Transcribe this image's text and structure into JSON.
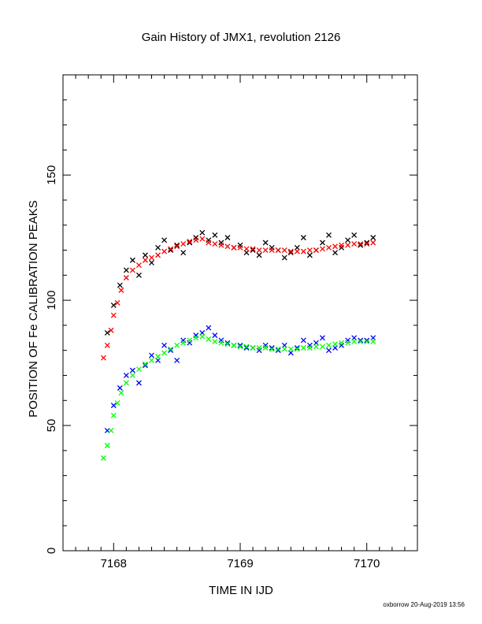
{
  "chart_data": {
    "type": "scatter",
    "title": "Gain History of JMX1, revolution 2126",
    "xlabel": "TIME IN IJD",
    "ylabel": "POSITION OF Fe CALIBRATION PEAKS",
    "xlim": [
      7167.6,
      7170.4
    ],
    "ylim": [
      0,
      190
    ],
    "xticks": [
      7168,
      7169,
      7170
    ],
    "xtick_labels": [
      "7168",
      "7169",
      "7170"
    ],
    "yticks": [
      0,
      50,
      100,
      150
    ],
    "ytick_labels": [
      "0",
      "50",
      "100",
      "150"
    ],
    "grid": false,
    "legend": "none",
    "series": [
      {
        "marker": "cross",
        "color": "#000000",
        "x": [
          7167.95,
          7168.0,
          7168.05,
          7168.1,
          7168.15,
          7168.2,
          7168.25,
          7168.3,
          7168.35,
          7168.4,
          7168.45,
          7168.5,
          7168.55,
          7168.6,
          7168.65,
          7168.7,
          7168.75,
          7168.8,
          7168.85,
          7168.9,
          7168.95,
          7169.0,
          7169.05,
          7169.1,
          7169.15,
          7169.2,
          7169.25,
          7169.3,
          7169.35,
          7169.4,
          7169.45,
          7169.5,
          7169.55,
          7169.6,
          7169.65,
          7169.7,
          7169.75,
          7169.8,
          7169.85,
          7169.9,
          7169.95,
          7170.0,
          7170.05
        ],
        "y": [
          87,
          98,
          106,
          112,
          116,
          110,
          118,
          115,
          121,
          124,
          120,
          122,
          119,
          123,
          125,
          127,
          124,
          126,
          123,
          125,
          121,
          122,
          119,
          120,
          118,
          123,
          121,
          120,
          117,
          119,
          121,
          125,
          118,
          120,
          123,
          126,
          119,
          121,
          124,
          126,
          122,
          123,
          125
        ]
      },
      {
        "marker": "cross",
        "color": "#ff0000",
        "x": [
          7167.92,
          7167.95,
          7167.98,
          7168.0,
          7168.03,
          7168.06,
          7168.1,
          7168.15,
          7168.2,
          7168.25,
          7168.3,
          7168.35,
          7168.4,
          7168.45,
          7168.5,
          7168.55,
          7168.6,
          7168.65,
          7168.7,
          7168.75,
          7168.8,
          7168.85,
          7168.9,
          7168.95,
          7169.0,
          7169.05,
          7169.1,
          7169.15,
          7169.2,
          7169.25,
          7169.3,
          7169.35,
          7169.4,
          7169.45,
          7169.5,
          7169.55,
          7169.6,
          7169.65,
          7169.7,
          7169.75,
          7169.8,
          7169.85,
          7169.9,
          7169.95,
          7170.0,
          7170.05
        ],
        "y": [
          77,
          82,
          88,
          94,
          99,
          104,
          109,
          112,
          114,
          116,
          117,
          118,
          119.5,
          120.5,
          121.5,
          122.5,
          123.5,
          124,
          124.5,
          123,
          122.5,
          122,
          121.5,
          121,
          121,
          120.5,
          120.5,
          120,
          120,
          120,
          120,
          120,
          119.5,
          119.5,
          119.5,
          120,
          120,
          120.5,
          121,
          121.5,
          122,
          122,
          122.5,
          122.5,
          122.5,
          123
        ]
      },
      {
        "marker": "cross",
        "color": "#0000ff",
        "x": [
          7167.95,
          7168.0,
          7168.05,
          7168.1,
          7168.15,
          7168.2,
          7168.25,
          7168.3,
          7168.35,
          7168.4,
          7168.45,
          7168.5,
          7168.55,
          7168.6,
          7168.65,
          7168.7,
          7168.75,
          7168.8,
          7168.85,
          7168.9,
          7168.95,
          7169.0,
          7169.05,
          7169.1,
          7169.15,
          7169.2,
          7169.25,
          7169.3,
          7169.35,
          7169.4,
          7169.45,
          7169.5,
          7169.55,
          7169.6,
          7169.65,
          7169.7,
          7169.75,
          7169.8,
          7169.85,
          7169.9,
          7169.95,
          7170.0,
          7170.05
        ],
        "y": [
          48,
          58,
          65,
          70,
          72,
          67,
          74,
          78,
          76,
          82,
          80,
          76,
          84,
          83,
          86,
          87,
          89,
          86,
          84,
          83,
          82,
          82,
          81,
          81,
          80,
          82,
          81,
          80,
          82,
          79,
          81,
          84,
          82,
          83,
          85,
          80,
          81,
          82,
          84,
          85,
          84,
          84,
          85
        ]
      },
      {
        "marker": "cross",
        "color": "#00ff00",
        "x": [
          7167.92,
          7167.95,
          7167.98,
          7168.0,
          7168.03,
          7168.06,
          7168.1,
          7168.15,
          7168.2,
          7168.25,
          7168.3,
          7168.35,
          7168.4,
          7168.45,
          7168.5,
          7168.55,
          7168.6,
          7168.65,
          7168.7,
          7168.75,
          7168.8,
          7168.85,
          7168.9,
          7168.95,
          7169.0,
          7169.05,
          7169.1,
          7169.15,
          7169.2,
          7169.25,
          7169.3,
          7169.35,
          7169.4,
          7169.45,
          7169.5,
          7169.55,
          7169.6,
          7169.65,
          7169.7,
          7169.75,
          7169.8,
          7169.85,
          7169.9,
          7169.95,
          7170.0,
          7170.05
        ],
        "y": [
          37,
          42,
          48,
          54,
          59,
          63,
          67,
          70,
          72.5,
          74.5,
          76,
          77.5,
          79,
          80.5,
          82,
          83,
          84,
          85,
          85.5,
          84.5,
          83.5,
          83,
          82.5,
          82,
          81.5,
          81.5,
          81,
          81,
          81,
          80.5,
          80.5,
          80.5,
          80.5,
          80.5,
          81,
          81,
          81.5,
          81.5,
          82,
          82.5,
          83,
          83,
          83.5,
          83.5,
          83.5,
          83.5
        ]
      }
    ]
  },
  "footer": {
    "text": "oxborrow 20-Aug-2019 13:56"
  }
}
